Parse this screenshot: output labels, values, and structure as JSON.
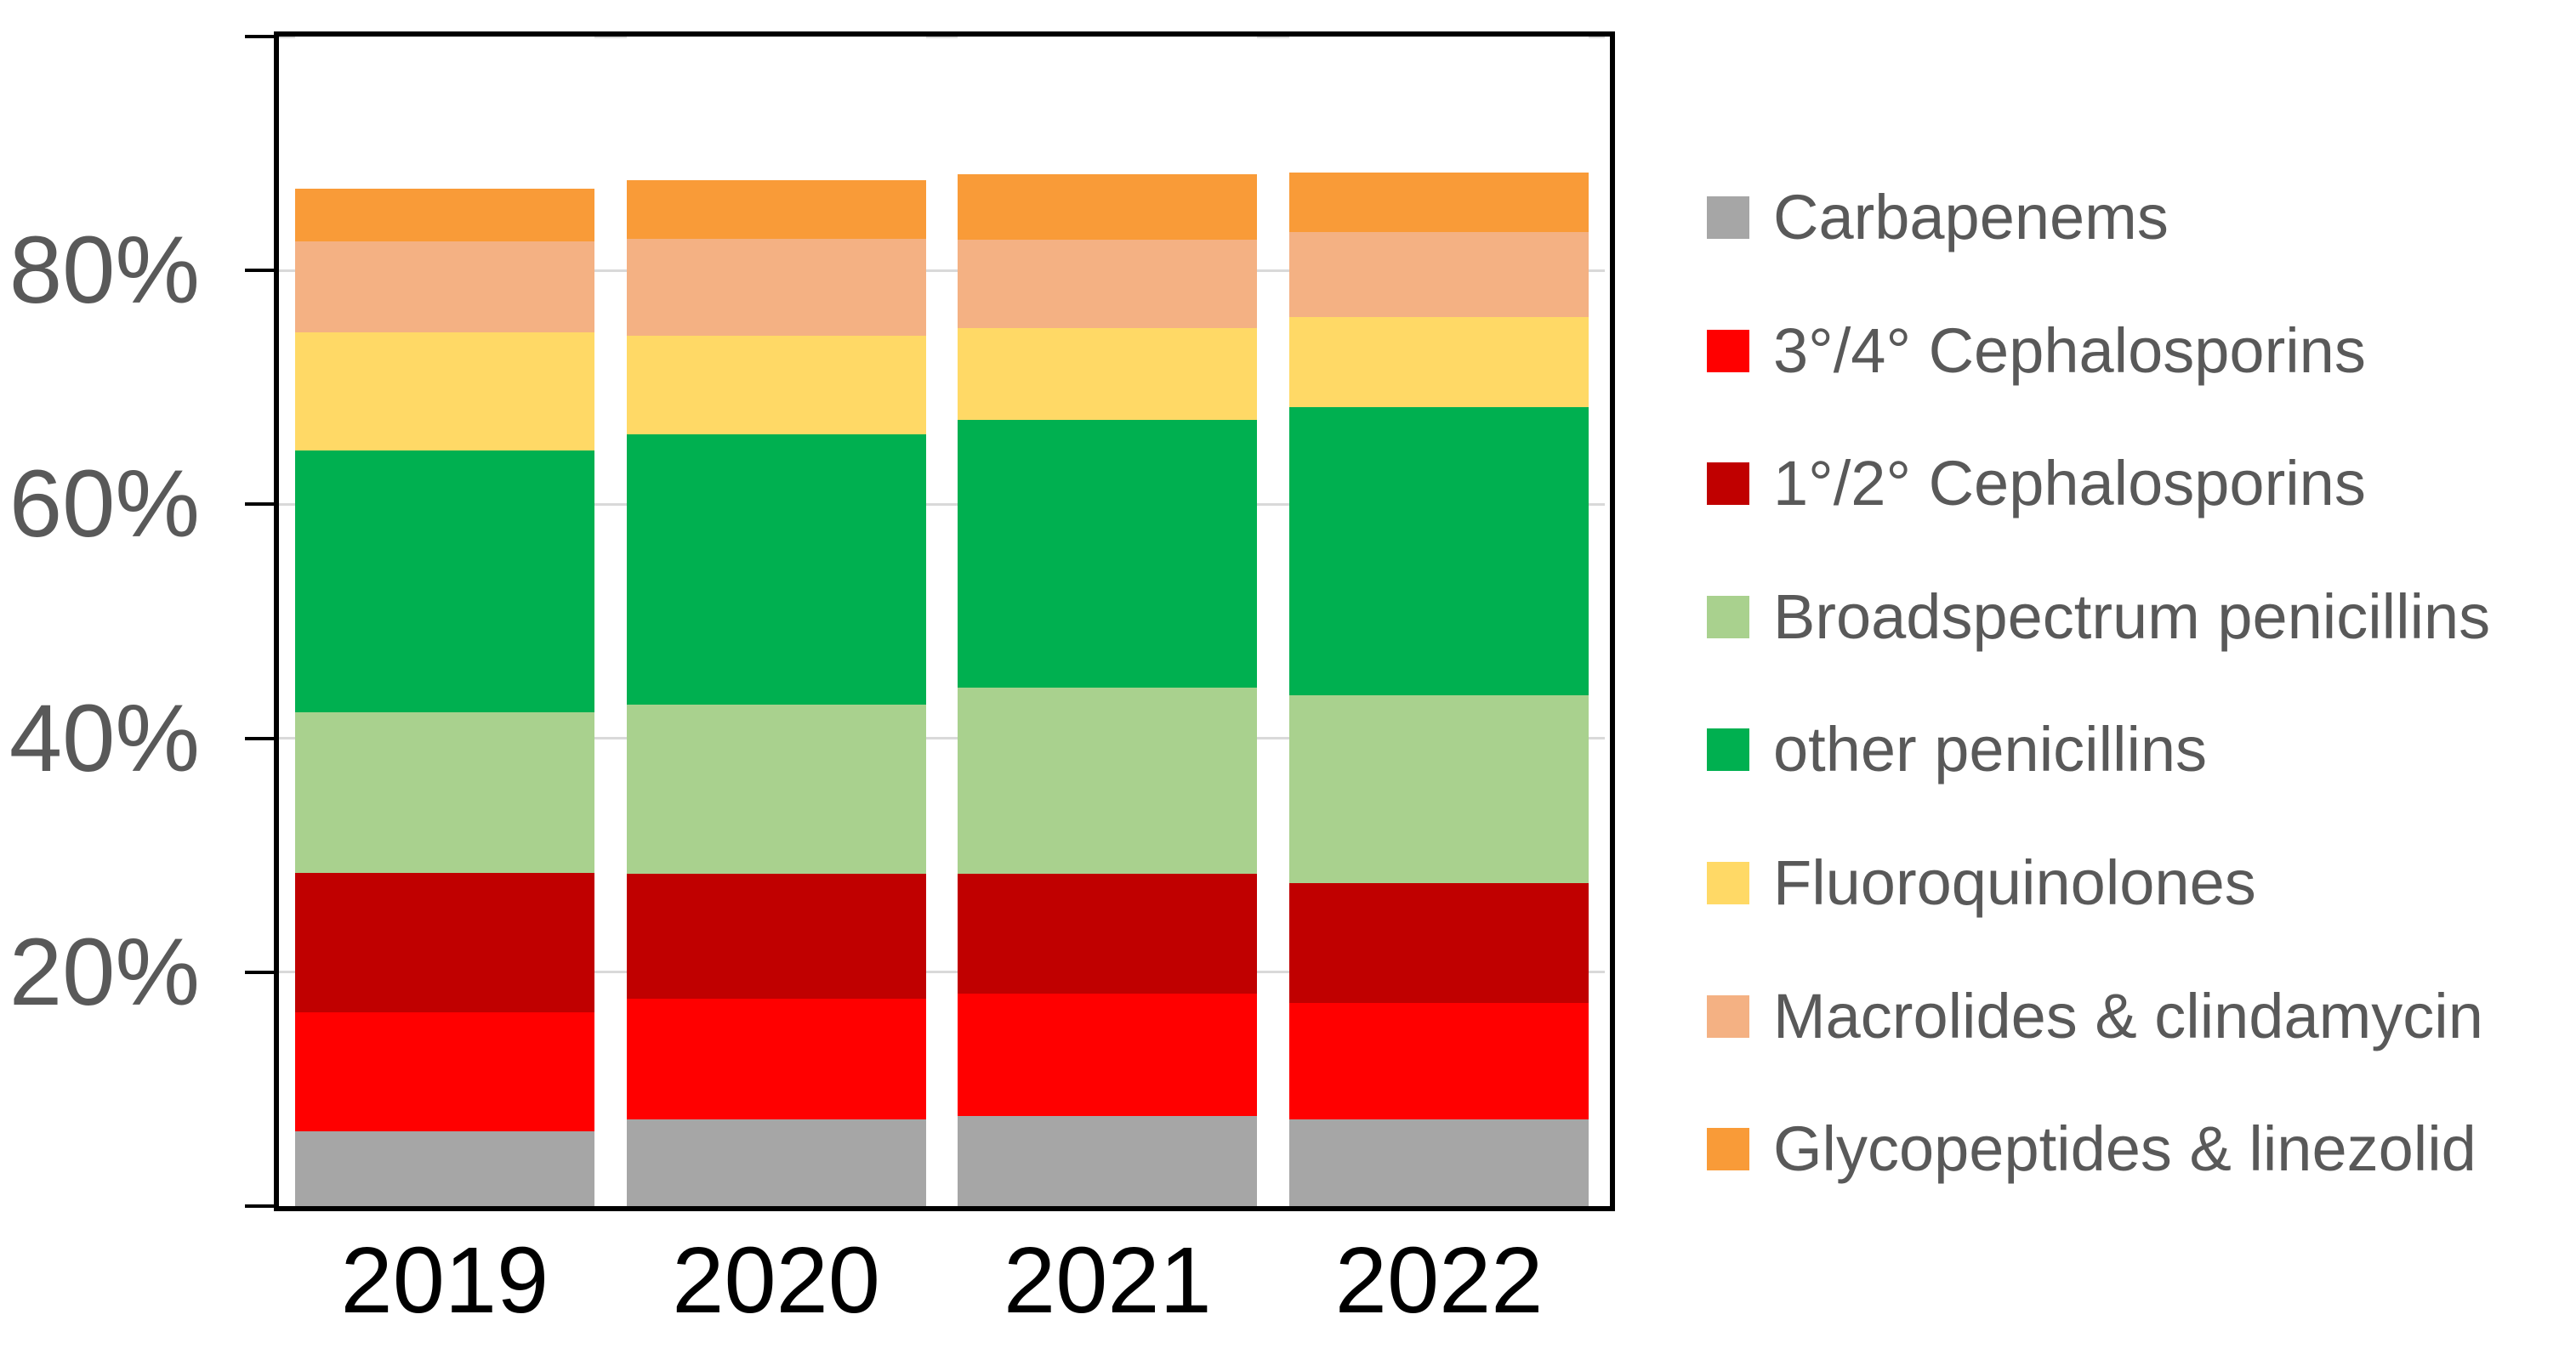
{
  "chart_data": {
    "type": "bar",
    "stacked": true,
    "unit": "percent",
    "title": "",
    "xlabel": "",
    "ylabel": "",
    "categories": [
      "2019",
      "2020",
      "2021",
      "2022"
    ],
    "series": [
      {
        "name": "Carbapenems",
        "color": "#A6A6A6",
        "values": [
          6.4,
          7.4,
          7.7,
          7.4
        ]
      },
      {
        "name": "3°/4° Cephalosporins",
        "color": "#FF0000",
        "values": [
          10.2,
          10.3,
          10.5,
          10.0
        ]
      },
      {
        "name": "1°/2° Cephalosporins",
        "color": "#C00000",
        "values": [
          11.9,
          10.7,
          10.2,
          10.2
        ]
      },
      {
        "name": "Broadspectrum penicillins",
        "color": "#A9D18E",
        "values": [
          13.7,
          14.5,
          15.9,
          16.1
        ]
      },
      {
        "name": "other penicillins",
        "color": "#00B050",
        "values": [
          22.4,
          23.1,
          22.9,
          24.6
        ]
      },
      {
        "name": "Fluoroquinolones",
        "color": "#FFD966",
        "values": [
          10.1,
          8.4,
          7.9,
          7.7
        ]
      },
      {
        "name": "Macrolides & clindamycin",
        "color": "#F4B183",
        "values": [
          7.8,
          8.3,
          7.5,
          7.3
        ]
      },
      {
        "name": "Glycopeptides & linezolid",
        "color": "#F99B38",
        "values": [
          4.5,
          5.0,
          5.6,
          5.1
        ]
      }
    ],
    "y_axis": {
      "min": 0,
      "max": 100,
      "tick_labels": [
        "20%",
        "40%",
        "60%",
        "80%"
      ],
      "tick_values": [
        20,
        40,
        60,
        80
      ],
      "axis_tick_values": [
        0,
        20,
        40,
        60,
        80,
        100
      ],
      "gridline_values": [
        20,
        40,
        60,
        80,
        100
      ],
      "gridlines": true
    },
    "legend_position": "right",
    "colors": {
      "gridline": "#D9D9D9",
      "axis": "#000000",
      "y_label_text": "#595959",
      "x_label_text": "#000000",
      "legend_text": "#595959",
      "background": "#FFFFFF"
    }
  }
}
